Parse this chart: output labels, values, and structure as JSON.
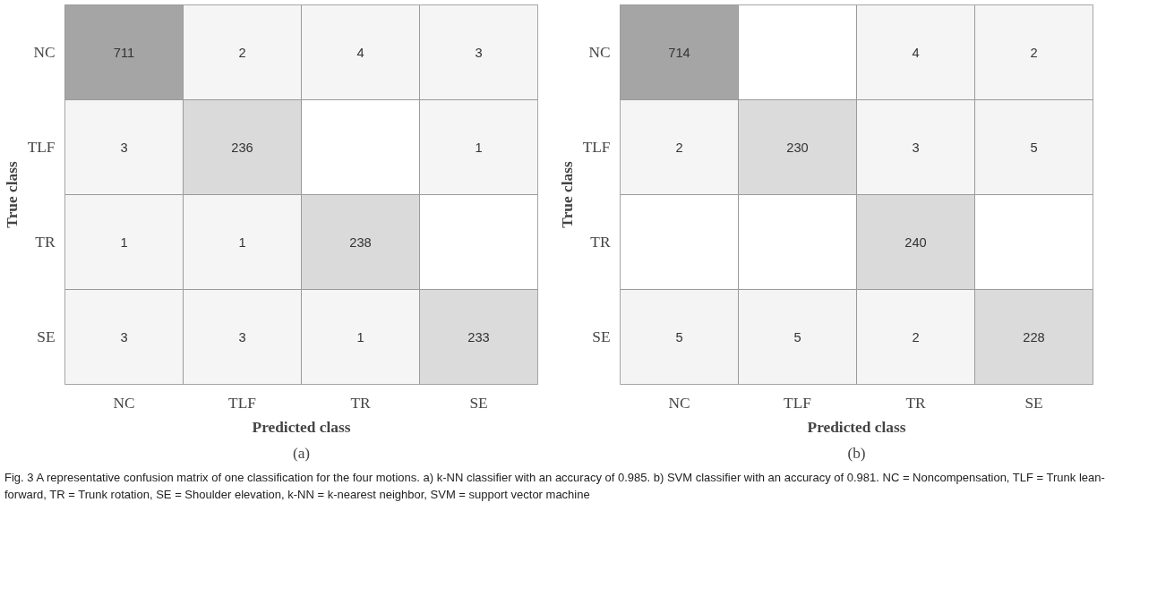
{
  "chart_data": [
    {
      "type": "heatmap",
      "categories": [
        "NC",
        "TLF",
        "TR",
        "SE"
      ],
      "y_categories": [
        "NC",
        "TLF",
        "TR",
        "SE"
      ],
      "xlabel": "Predicted class",
      "ylabel": "True class",
      "subtitle": "(a)",
      "data_labels": true,
      "cells": [
        [
          711,
          2,
          4,
          3
        ],
        [
          3,
          236,
          null,
          1
        ],
        [
          1,
          1,
          238,
          null
        ],
        [
          3,
          3,
          1,
          233
        ]
      ],
      "annotations": [
        "Fig. 3 A representative confusion matrix of one classification for the four motions. a) k-NN classifier with an accuracy of 0.985. b) SVM classifier with an accuracy of 0.981. NC = Noncompensation, TLF = Trunk lean-forward, TR = Trunk rotation, SE = Shoulder elevation, k-NN = k-nearest neighbor, SVM = support vector machine"
      ]
    },
    {
      "type": "heatmap",
      "categories": [
        "NC",
        "TLF",
        "TR",
        "SE"
      ],
      "y_categories": [
        "NC",
        "TLF",
        "TR",
        "SE"
      ],
      "xlabel": "Predicted class",
      "ylabel": "True class",
      "subtitle": "(b)",
      "data_labels": true,
      "cells": [
        [
          714,
          null,
          4,
          2
        ],
        [
          2,
          230,
          3,
          5
        ],
        [
          null,
          null,
          240,
          null
        ],
        [
          5,
          5,
          2,
          228
        ]
      ]
    }
  ]
}
